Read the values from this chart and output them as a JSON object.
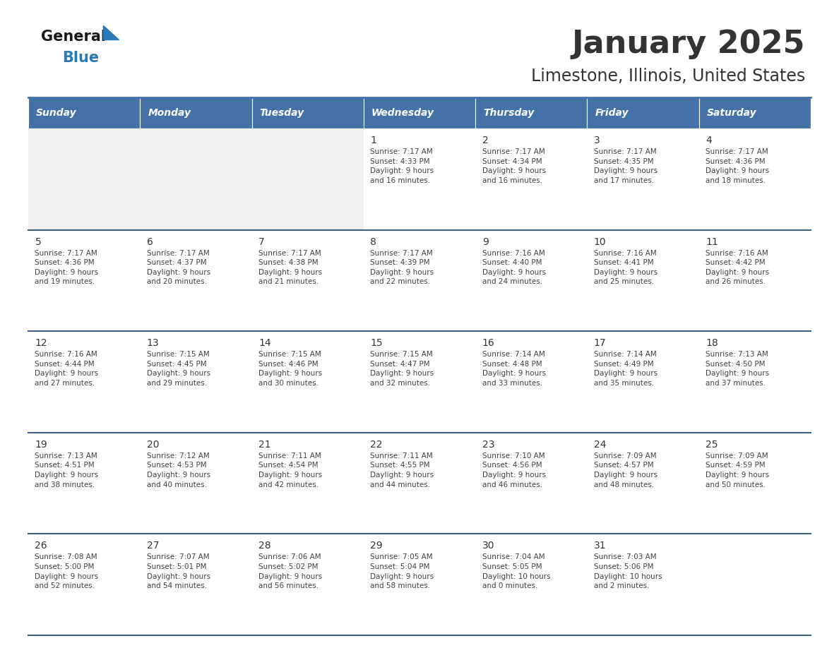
{
  "title": "January 2025",
  "subtitle": "Limestone, Illinois, United States",
  "header_bg": "#4472a8",
  "header_text_color": "#ffffff",
  "day_names": [
    "Sunday",
    "Monday",
    "Tuesday",
    "Wednesday",
    "Thursday",
    "Friday",
    "Saturday"
  ],
  "cell_bg_light": "#f0f0f0",
  "cell_bg_white": "#ffffff",
  "divider_color": "#3a5f8a",
  "text_color": "#404040",
  "day_num_color": "#333333",
  "logo_general_color": "#1a1a1a",
  "logo_blue_color": "#2a7ab8",
  "calendar": [
    [
      {
        "day": null,
        "info": null
      },
      {
        "day": null,
        "info": null
      },
      {
        "day": null,
        "info": null
      },
      {
        "day": 1,
        "info": "Sunrise: 7:17 AM\nSunset: 4:33 PM\nDaylight: 9 hours\nand 16 minutes."
      },
      {
        "day": 2,
        "info": "Sunrise: 7:17 AM\nSunset: 4:34 PM\nDaylight: 9 hours\nand 16 minutes."
      },
      {
        "day": 3,
        "info": "Sunrise: 7:17 AM\nSunset: 4:35 PM\nDaylight: 9 hours\nand 17 minutes."
      },
      {
        "day": 4,
        "info": "Sunrise: 7:17 AM\nSunset: 4:36 PM\nDaylight: 9 hours\nand 18 minutes."
      }
    ],
    [
      {
        "day": 5,
        "info": "Sunrise: 7:17 AM\nSunset: 4:36 PM\nDaylight: 9 hours\nand 19 minutes."
      },
      {
        "day": 6,
        "info": "Sunrise: 7:17 AM\nSunset: 4:37 PM\nDaylight: 9 hours\nand 20 minutes."
      },
      {
        "day": 7,
        "info": "Sunrise: 7:17 AM\nSunset: 4:38 PM\nDaylight: 9 hours\nand 21 minutes."
      },
      {
        "day": 8,
        "info": "Sunrise: 7:17 AM\nSunset: 4:39 PM\nDaylight: 9 hours\nand 22 minutes."
      },
      {
        "day": 9,
        "info": "Sunrise: 7:16 AM\nSunset: 4:40 PM\nDaylight: 9 hours\nand 24 minutes."
      },
      {
        "day": 10,
        "info": "Sunrise: 7:16 AM\nSunset: 4:41 PM\nDaylight: 9 hours\nand 25 minutes."
      },
      {
        "day": 11,
        "info": "Sunrise: 7:16 AM\nSunset: 4:42 PM\nDaylight: 9 hours\nand 26 minutes."
      }
    ],
    [
      {
        "day": 12,
        "info": "Sunrise: 7:16 AM\nSunset: 4:44 PM\nDaylight: 9 hours\nand 27 minutes."
      },
      {
        "day": 13,
        "info": "Sunrise: 7:15 AM\nSunset: 4:45 PM\nDaylight: 9 hours\nand 29 minutes."
      },
      {
        "day": 14,
        "info": "Sunrise: 7:15 AM\nSunset: 4:46 PM\nDaylight: 9 hours\nand 30 minutes."
      },
      {
        "day": 15,
        "info": "Sunrise: 7:15 AM\nSunset: 4:47 PM\nDaylight: 9 hours\nand 32 minutes."
      },
      {
        "day": 16,
        "info": "Sunrise: 7:14 AM\nSunset: 4:48 PM\nDaylight: 9 hours\nand 33 minutes."
      },
      {
        "day": 17,
        "info": "Sunrise: 7:14 AM\nSunset: 4:49 PM\nDaylight: 9 hours\nand 35 minutes."
      },
      {
        "day": 18,
        "info": "Sunrise: 7:13 AM\nSunset: 4:50 PM\nDaylight: 9 hours\nand 37 minutes."
      }
    ],
    [
      {
        "day": 19,
        "info": "Sunrise: 7:13 AM\nSunset: 4:51 PM\nDaylight: 9 hours\nand 38 minutes."
      },
      {
        "day": 20,
        "info": "Sunrise: 7:12 AM\nSunset: 4:53 PM\nDaylight: 9 hours\nand 40 minutes."
      },
      {
        "day": 21,
        "info": "Sunrise: 7:11 AM\nSunset: 4:54 PM\nDaylight: 9 hours\nand 42 minutes."
      },
      {
        "day": 22,
        "info": "Sunrise: 7:11 AM\nSunset: 4:55 PM\nDaylight: 9 hours\nand 44 minutes."
      },
      {
        "day": 23,
        "info": "Sunrise: 7:10 AM\nSunset: 4:56 PM\nDaylight: 9 hours\nand 46 minutes."
      },
      {
        "day": 24,
        "info": "Sunrise: 7:09 AM\nSunset: 4:57 PM\nDaylight: 9 hours\nand 48 minutes."
      },
      {
        "day": 25,
        "info": "Sunrise: 7:09 AM\nSunset: 4:59 PM\nDaylight: 9 hours\nand 50 minutes."
      }
    ],
    [
      {
        "day": 26,
        "info": "Sunrise: 7:08 AM\nSunset: 5:00 PM\nDaylight: 9 hours\nand 52 minutes."
      },
      {
        "day": 27,
        "info": "Sunrise: 7:07 AM\nSunset: 5:01 PM\nDaylight: 9 hours\nand 54 minutes."
      },
      {
        "day": 28,
        "info": "Sunrise: 7:06 AM\nSunset: 5:02 PM\nDaylight: 9 hours\nand 56 minutes."
      },
      {
        "day": 29,
        "info": "Sunrise: 7:05 AM\nSunset: 5:04 PM\nDaylight: 9 hours\nand 58 minutes."
      },
      {
        "day": 30,
        "info": "Sunrise: 7:04 AM\nSunset: 5:05 PM\nDaylight: 10 hours\nand 0 minutes."
      },
      {
        "day": 31,
        "info": "Sunrise: 7:03 AM\nSunset: 5:06 PM\nDaylight: 10 hours\nand 2 minutes."
      },
      {
        "day": null,
        "info": null
      }
    ]
  ]
}
